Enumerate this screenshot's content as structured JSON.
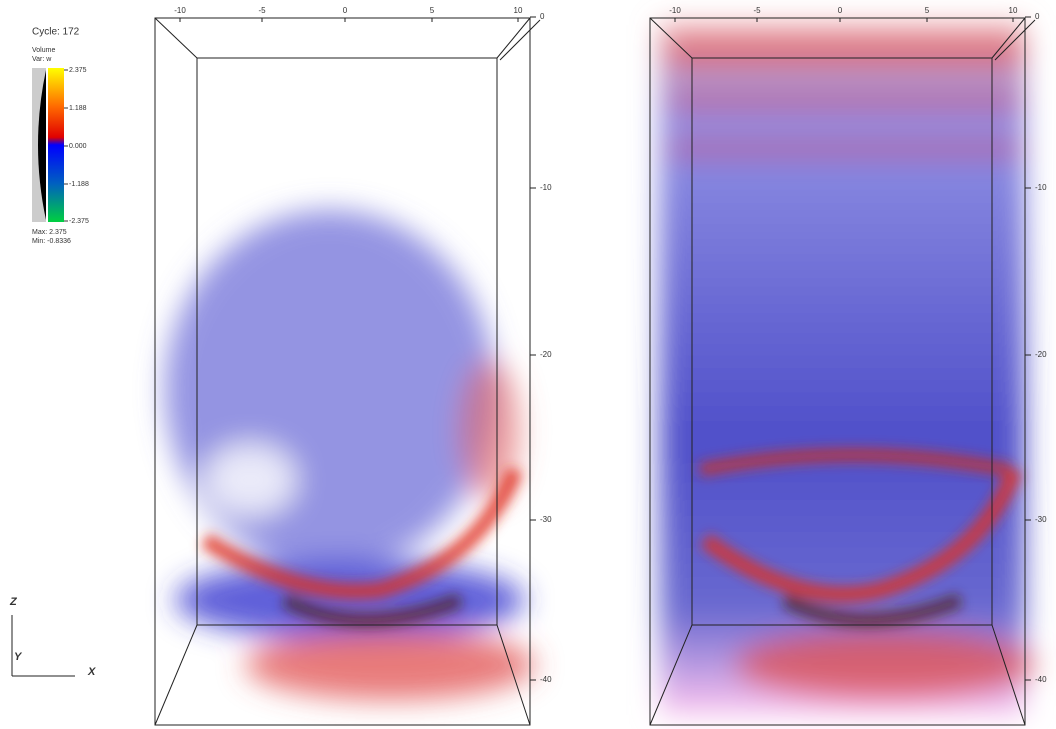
{
  "legend": {
    "cycle": "Cycle: 172",
    "plot": "Volume",
    "variable": "Var: w",
    "ticks": [
      "2.375",
      "1.188",
      "0.000",
      "-1.188",
      "-2.375"
    ],
    "max": "Max: 2.375",
    "min": "Min: -0.8336"
  },
  "panels": [
    {
      "x_ticks": [
        "-10",
        "-5",
        "0",
        "5",
        "10"
      ],
      "z_ticks": [
        "0",
        "-10",
        "-20",
        "-30",
        "-40"
      ]
    },
    {
      "x_ticks": [
        "-10",
        "-5",
        "0",
        "5",
        "10"
      ],
      "z_ticks": [
        "0",
        "-10",
        "-20",
        "-30",
        "-40"
      ]
    }
  ],
  "triad": {
    "z": "Z",
    "y": "Y",
    "x": "X"
  }
}
